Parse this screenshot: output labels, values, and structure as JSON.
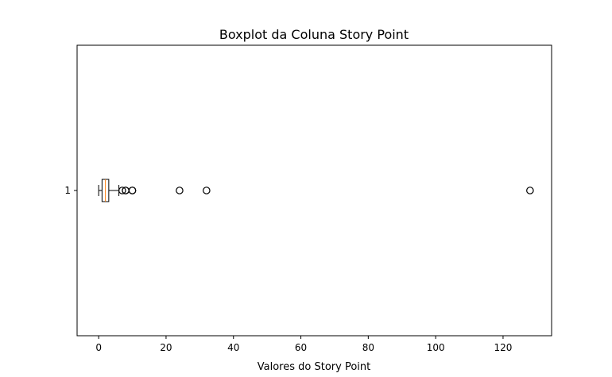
{
  "chart_data": {
    "type": "boxplot",
    "orientation": "horizontal",
    "title": "Boxplot da Coluna Story Point",
    "xlabel": "Valores do Story Point",
    "ylabel": "",
    "xlim": [
      -6.4,
      134.4
    ],
    "x_ticks": [
      0,
      20,
      40,
      60,
      80,
      100,
      120
    ],
    "y_ticks": [
      "1"
    ],
    "grid": false,
    "series": [
      {
        "category": "1",
        "whisker_low": 0,
        "q1": 1,
        "median": 2,
        "q3": 3,
        "whisker_high": 6,
        "outliers": [
          7,
          8,
          8,
          10,
          10,
          24,
          32,
          128
        ]
      }
    ],
    "colors": {
      "box": "#000000",
      "median": "#ff7f0e",
      "outlier": "#000000"
    }
  }
}
